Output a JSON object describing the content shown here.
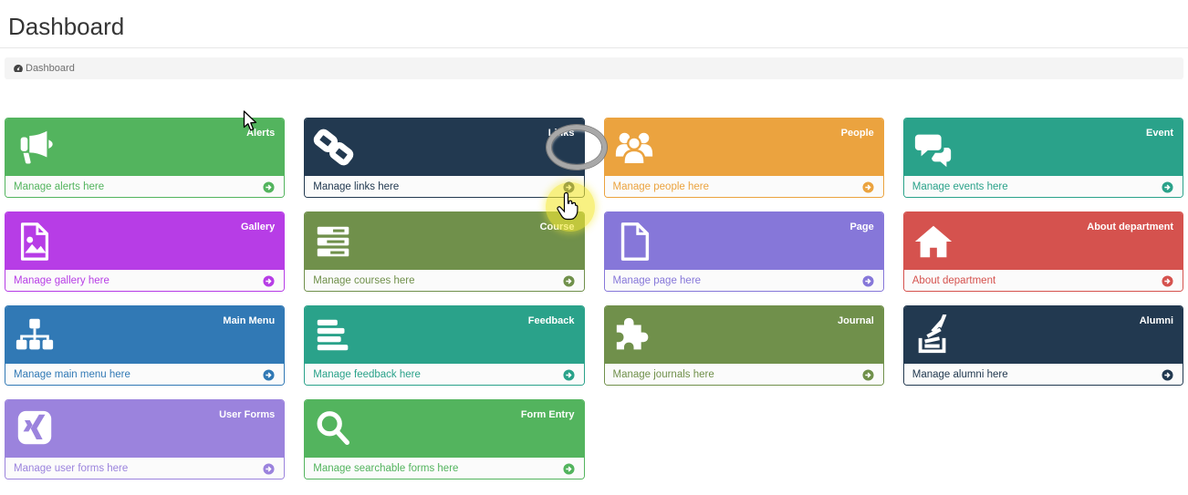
{
  "page": {
    "title": "Dashboard"
  },
  "breadcrumb": {
    "icon": "dashboard-icon",
    "label": "Dashboard"
  },
  "tiles": [
    {
      "label": "Alerts",
      "footer": "Manage alerts here",
      "color": "#53b45e",
      "icon": "bullhorn-icon"
    },
    {
      "label": "Links",
      "footer": "Manage links here",
      "color": "#223950",
      "icon": "link-icon"
    },
    {
      "label": "People",
      "footer": "Manage people here",
      "color": "#eba33f",
      "icon": "users-icon"
    },
    {
      "label": "Event",
      "footer": "Manage events here",
      "color": "#2aa28a",
      "icon": "comments-icon"
    },
    {
      "label": "Gallery",
      "footer": "Manage gallery here",
      "color": "#b73de6",
      "icon": "file-image-icon"
    },
    {
      "label": "Course",
      "footer": "Manage courses here",
      "color": "#70904b",
      "icon": "tasks-icon"
    },
    {
      "label": "Page",
      "footer": "Manage page here",
      "color": "#8677d9",
      "icon": "file-icon"
    },
    {
      "label": "About department",
      "footer": "About department",
      "color": "#d5524e",
      "icon": "home-icon"
    },
    {
      "label": "Main Menu",
      "footer": "Manage main menu here",
      "color": "#3179b5",
      "icon": "sitemap-icon"
    },
    {
      "label": "Feedback",
      "footer": "Manage feedback here",
      "color": "#2aa28a",
      "icon": "align-left-icon"
    },
    {
      "label": "Journal",
      "footer": "Manage journals here",
      "color": "#70904b",
      "icon": "puzzle-icon"
    },
    {
      "label": "Alumni",
      "footer": "Manage alumni here",
      "color": "#223950",
      "icon": "stackoverflow-icon"
    },
    {
      "label": "User Forms",
      "footer": "Manage user forms here",
      "color": "#9b83dd",
      "icon": "xing-icon"
    },
    {
      "label": "Form Entry",
      "footer": "Manage searchable forms here",
      "color": "#53b45e",
      "icon": "search-icon"
    }
  ],
  "annotations": {
    "circled_label": "Links",
    "ring_color": "#a8a8a8",
    "highlight_color": "#f3e936"
  }
}
